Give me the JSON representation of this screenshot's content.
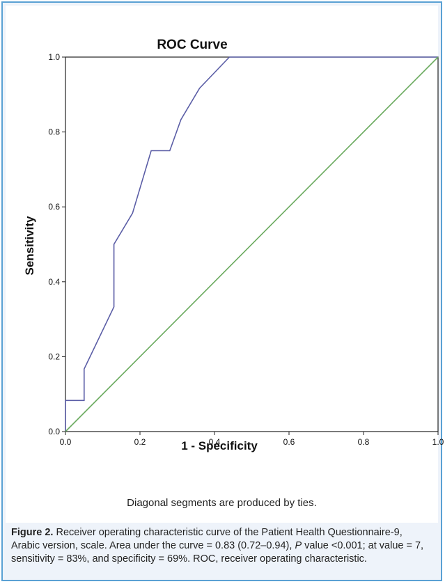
{
  "chart_data": {
    "type": "line",
    "title": "ROC Curve",
    "xlabel": "1 - Specificity",
    "ylabel": "Sensitivity",
    "xlim": [
      0.0,
      1.0
    ],
    "ylim": [
      0.0,
      1.0
    ],
    "xticks": [
      "0.0",
      "0.2",
      "0.4",
      "0.6",
      "0.8",
      "1.0"
    ],
    "yticks": [
      "0.0",
      "0.2",
      "0.4",
      "0.6",
      "0.8",
      "1.0"
    ],
    "grid": false,
    "series": [
      {
        "color": "#5b5ea6",
        "x": [
          0.0,
          0.0,
          0.05,
          0.05,
          0.13,
          0.13,
          0.18,
          0.23,
          0.28,
          0.31,
          0.36,
          0.44,
          1.0
        ],
        "y": [
          0.0,
          0.083,
          0.083,
          0.167,
          0.333,
          0.5,
          0.583,
          0.75,
          0.75,
          0.833,
          0.917,
          1.0,
          1.0
        ]
      },
      {
        "color": "#6aaa5e",
        "x": [
          0.0,
          1.0
        ],
        "y": [
          0.0,
          1.0
        ]
      }
    ]
  },
  "footnote": "Diagonal segments are produced by ties.",
  "caption": {
    "label": "Figure 2.",
    "part1": " Receiver operating characteristic curve of the Patient Health Questionnaire-9, Arabic version, scale. Area under the curve = 0.83 (0.72–0.94), ",
    "p_italic": "P",
    "part2": " value <0.001; at value = 7, sensitivity = 83%, and specificity = 69%. ROC, receiver operating characteristic."
  }
}
